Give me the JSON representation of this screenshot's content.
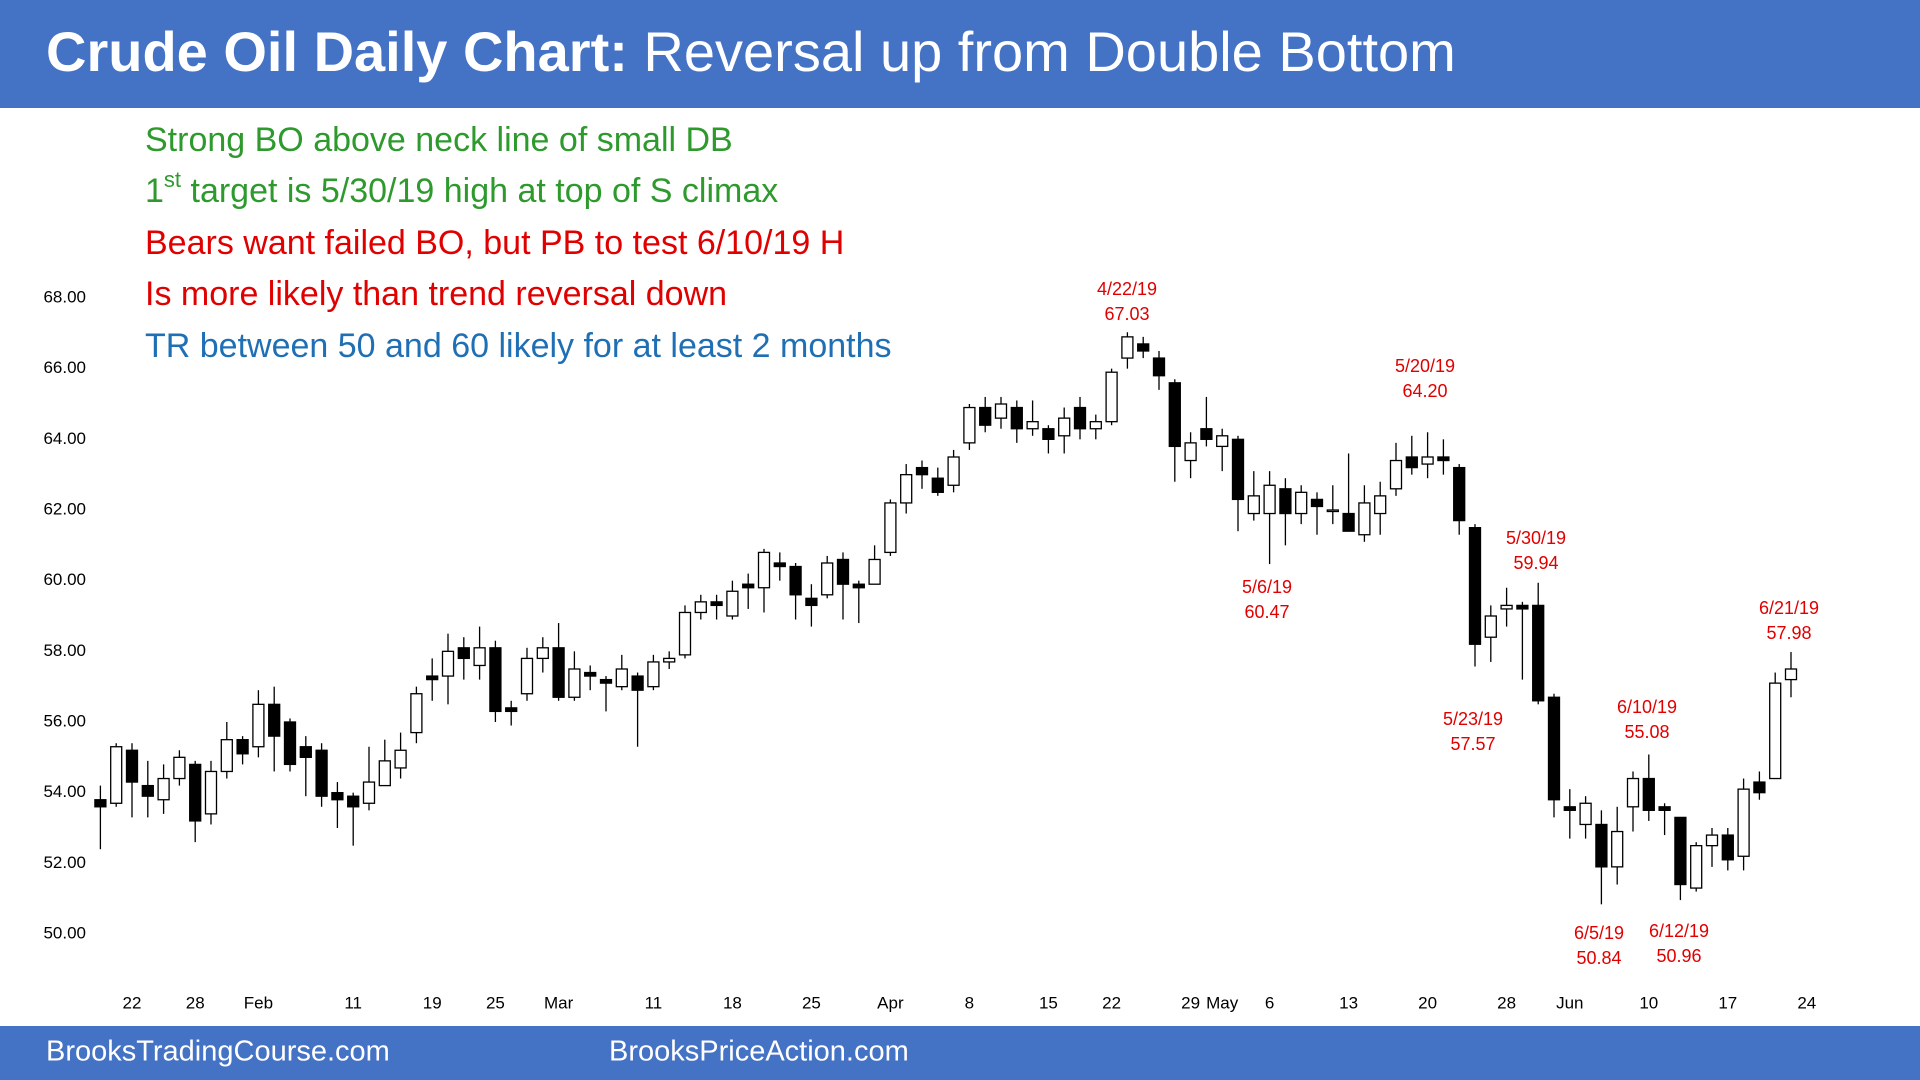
{
  "header": {
    "title_bold": "Crude Oil Daily Chart:",
    "title_rest": " Reversal up from Double Bottom"
  },
  "notes": [
    {
      "text": "Strong BO above neck line of small DB",
      "color": "#2e9a2e"
    },
    {
      "text": "1",
      "sup": "st",
      "rest": " target is 5/30/19 high at top of S climax",
      "color": "#2e9a2e"
    },
    {
      "text": "Bears want failed BO, but PB to test 6/10/19 H",
      "color": "#e00000"
    },
    {
      "text": "Is more likely than trend reversal down",
      "color": "#e00000"
    },
    {
      "text": "TR between 50 and 60 likely for at least 2 months",
      "color": "#1f6fb5"
    }
  ],
  "chart_data": {
    "type": "candlestick",
    "categories": [
      null,
      null,
      "22",
      null,
      null,
      null,
      "28",
      null,
      null,
      null,
      "Feb",
      null,
      null,
      null,
      null,
      null,
      "11",
      null,
      null,
      null,
      null,
      "19",
      null,
      null,
      null,
      "25",
      null,
      null,
      null,
      "Mar",
      null,
      null,
      null,
      null,
      null,
      "11",
      null,
      null,
      null,
      null,
      "18",
      null,
      null,
      null,
      null,
      "25",
      null,
      null,
      null,
      null,
      "Apr",
      null,
      null,
      null,
      null,
      "8",
      null,
      null,
      null,
      null,
      "15",
      null,
      null,
      null,
      "22",
      null,
      null,
      null,
      null,
      "29",
      null,
      "May",
      null,
      null,
      "6",
      null,
      null,
      null,
      null,
      "13",
      null,
      null,
      null,
      null,
      "20",
      null,
      null,
      null,
      null,
      "28",
      null,
      null,
      null,
      "Jun",
      null,
      null,
      null,
      null,
      "10",
      null,
      null,
      null,
      null,
      "17",
      null,
      null,
      null,
      null,
      "24"
    ],
    "open": [
      53.8,
      53.7,
      55.2,
      54.2,
      53.8,
      54.4,
      54.8,
      53.4,
      54.6,
      55.5,
      55.3,
      56.5,
      56.0,
      55.3,
      55.2,
      54.0,
      53.9,
      53.7,
      54.2,
      54.7,
      55.7,
      57.3,
      57.3,
      58.1,
      57.6,
      58.1,
      56.4,
      56.8,
      57.8,
      58.1,
      56.7,
      57.4,
      57.2,
      57.0,
      57.3,
      57.0,
      57.7,
      57.9,
      59.1,
      59.4,
      59.0,
      59.9,
      59.8,
      60.5,
      60.4,
      59.5,
      59.6,
      60.6,
      59.9,
      59.9,
      60.8,
      62.2,
      63.2,
      62.9,
      62.7,
      63.9,
      64.9,
      64.6,
      64.9,
      64.3,
      64.3,
      64.1,
      64.9,
      64.3,
      64.5,
      66.3,
      66.7,
      66.3,
      65.6,
      63.4,
      64.3,
      63.8,
      64.0,
      61.9,
      61.9,
      62.6,
      61.9,
      62.3,
      62.0,
      61.9,
      61.3,
      61.9,
      62.6,
      63.5,
      63.3,
      63.5,
      63.2,
      61.5,
      58.4,
      59.2,
      59.3,
      59.3,
      56.7,
      53.6,
      53.1,
      53.1,
      51.9,
      53.6,
      54.4,
      53.6,
      53.3,
      51.3,
      52.5,
      52.8,
      52.2,
      54.3,
      54.4,
      57.2,
      null
    ],
    "high": [
      54.2,
      55.4,
      55.4,
      54.9,
      54.8,
      55.2,
      54.9,
      54.9,
      56.0,
      55.6,
      56.9,
      57.0,
      56.1,
      55.6,
      55.4,
      54.3,
      54.0,
      55.3,
      55.5,
      55.7,
      57.0,
      57.8,
      58.5,
      58.4,
      58.7,
      58.3,
      56.6,
      58.1,
      58.4,
      58.8,
      58.0,
      57.6,
      57.3,
      57.9,
      57.4,
      57.9,
      58.0,
      59.3,
      59.6,
      59.6,
      60.0,
      60.2,
      60.9,
      60.8,
      60.5,
      59.9,
      60.7,
      60.8,
      60.0,
      61.0,
      62.3,
      63.3,
      63.4,
      63.2,
      63.7,
      65.0,
      65.2,
      65.2,
      65.1,
      65.1,
      64.4,
      64.9,
      65.2,
      64.7,
      66.0,
      67.03,
      66.9,
      66.5,
      65.7,
      64.2,
      65.2,
      64.3,
      64.1,
      63.1,
      63.1,
      62.9,
      62.7,
      62.5,
      62.7,
      63.6,
      62.7,
      62.8,
      63.9,
      64.1,
      64.2,
      64.0,
      63.3,
      61.6,
      59.3,
      59.8,
      59.4,
      59.94,
      56.8,
      54.1,
      53.9,
      53.5,
      53.6,
      54.6,
      55.08,
      53.7,
      53.3,
      52.6,
      53.0,
      53.0,
      54.4,
      54.6,
      57.4,
      57.98,
      null
    ],
    "low": [
      52.4,
      53.6,
      53.3,
      53.3,
      53.4,
      54.2,
      52.6,
      53.1,
      54.4,
      54.8,
      55.0,
      54.6,
      54.6,
      53.9,
      53.6,
      53.0,
      52.5,
      53.5,
      54.2,
      54.4,
      55.4,
      56.6,
      56.5,
      57.2,
      57.2,
      56.0,
      55.9,
      56.6,
      57.4,
      56.6,
      56.6,
      56.9,
      56.3,
      56.9,
      55.3,
      56.9,
      57.5,
      57.8,
      58.9,
      58.9,
      58.9,
      59.2,
      59.1,
      60.0,
      58.9,
      58.7,
      59.5,
      58.9,
      58.8,
      59.9,
      60.7,
      61.9,
      62.6,
      62.4,
      62.5,
      63.7,
      64.2,
      64.3,
      63.9,
      64.1,
      63.6,
      63.6,
      64.0,
      64.0,
      64.4,
      66.0,
      66.3,
      65.4,
      62.8,
      62.9,
      63.8,
      63.1,
      61.4,
      61.7,
      60.47,
      61.0,
      61.6,
      61.3,
      61.6,
      61.4,
      61.1,
      61.3,
      62.4,
      63.0,
      62.9,
      63.0,
      61.3,
      57.57,
      57.7,
      58.7,
      57.2,
      56.5,
      53.3,
      52.7,
      52.7,
      50.84,
      51.4,
      52.9,
      53.2,
      52.8,
      50.96,
      51.2,
      51.9,
      51.8,
      51.8,
      53.8,
      54.4,
      56.7,
      null
    ],
    "close": [
      53.6,
      55.3,
      54.3,
      53.9,
      54.4,
      55.0,
      53.2,
      54.6,
      55.5,
      55.1,
      56.5,
      55.6,
      54.8,
      55.0,
      53.9,
      53.8,
      53.6,
      54.3,
      54.9,
      55.2,
      56.8,
      57.2,
      58.0,
      57.8,
      58.1,
      56.3,
      56.3,
      57.8,
      58.1,
      56.7,
      57.5,
      57.3,
      57.1,
      57.5,
      56.9,
      57.7,
      57.8,
      59.1,
      59.4,
      59.3,
      59.7,
      59.8,
      60.8,
      60.4,
      59.6,
      59.3,
      60.5,
      59.9,
      59.8,
      60.6,
      62.2,
      63.0,
      63.0,
      62.5,
      63.5,
      64.9,
      64.4,
      65.0,
      64.3,
      64.5,
      64.0,
      64.6,
      64.3,
      64.5,
      65.9,
      66.9,
      66.5,
      65.8,
      63.8,
      63.9,
      64.0,
      64.1,
      62.3,
      62.4,
      62.7,
      61.9,
      62.5,
      62.1,
      62.0,
      61.4,
      62.2,
      62.4,
      63.4,
      63.2,
      63.5,
      63.4,
      61.7,
      58.2,
      59.0,
      59.3,
      59.2,
      56.6,
      53.8,
      53.5,
      53.7,
      51.9,
      52.9,
      54.4,
      53.5,
      53.5,
      51.4,
      52.5,
      52.8,
      52.1,
      54.1,
      54.0,
      57.1,
      57.5,
      null
    ],
    "up_color": "#ffffff",
    "down_color": "#000000",
    "outline_color": "#000000",
    "ylim": [
      49,
      69
    ],
    "yticks": [
      {
        "value": 50,
        "label": "50.00"
      },
      {
        "value": 52,
        "label": "52.00"
      },
      {
        "value": 54,
        "label": "54.00"
      },
      {
        "value": 56,
        "label": "56.00"
      },
      {
        "value": 58,
        "label": "58.00"
      },
      {
        "value": 60,
        "label": "60.00"
      },
      {
        "value": 62,
        "label": "62.00"
      },
      {
        "value": 64,
        "label": "64.00"
      },
      {
        "value": 66,
        "label": "66.00"
      },
      {
        "value": 68,
        "label": "68.00"
      }
    ],
    "grid": false,
    "annotations": [
      {
        "date": "4/22/19",
        "price": "67.03"
      },
      {
        "date": "5/20/19",
        "price": "64.20"
      },
      {
        "date": "5/6/19",
        "price": "60.47"
      },
      {
        "date": "5/30/19",
        "price": "59.94"
      },
      {
        "date": "5/23/19",
        "price": "57.57"
      },
      {
        "date": "6/10/19",
        "price": "55.08"
      },
      {
        "date": "6/21/19",
        "price": "57.98"
      },
      {
        "date": "6/5/19",
        "price": "50.84"
      },
      {
        "date": "6/12/19",
        "price": "50.96"
      }
    ]
  },
  "footer": {
    "left": "BrooksTradingCourse.com",
    "right": "BrooksPriceAction.com"
  }
}
